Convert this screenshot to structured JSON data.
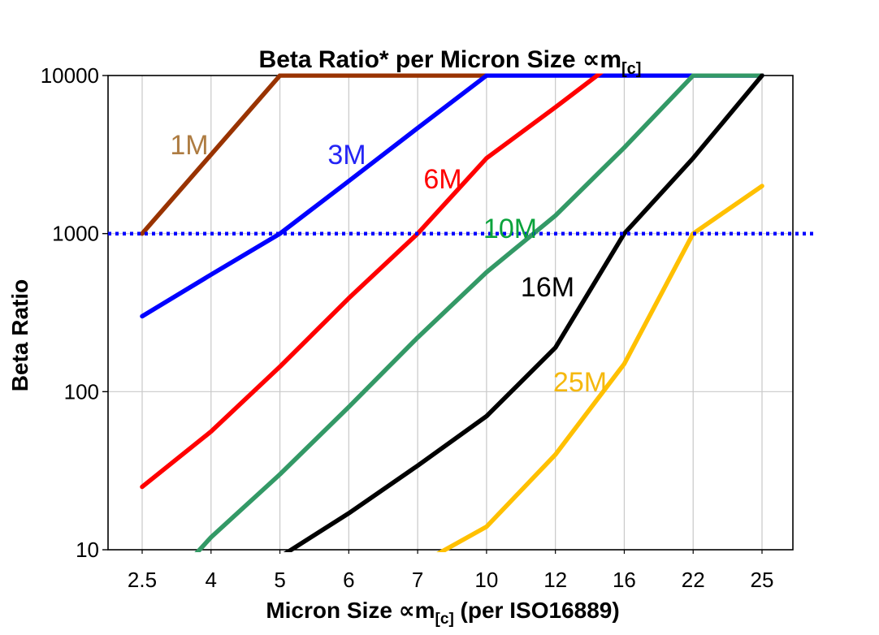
{
  "title": {
    "main": "Beta Ratio* per Micron Size ",
    "prop_symbol": "∝m",
    "subscript": "[c]"
  },
  "axes": {
    "x": {
      "label_prefix": "Micron Size ",
      "prop_symbol": "∝m",
      "subscript": "[c]",
      "label_suffix": " (per ISO16889)",
      "tick_labels": [
        "2.5",
        "4",
        "5",
        "6",
        "7",
        "10",
        "12",
        "16",
        "22",
        "25"
      ]
    },
    "y": {
      "label": "Beta Ratio",
      "tick_labels": [
        "10000",
        "1000",
        "100",
        "10"
      ],
      "tick_values": [
        10000,
        1000,
        100,
        10
      ],
      "scale": "log",
      "min": 10,
      "max": 10000
    }
  },
  "reference_line": {
    "value": 1000,
    "style": "dotted",
    "color": "#0000ff"
  },
  "chart_data": {
    "type": "line",
    "title": "Beta Ratio* per Micron Size ∝m[c]",
    "xlabel": "Micron Size ∝m[c] (per ISO16889)",
    "ylabel": "Beta Ratio",
    "x_categories": [
      2.5,
      4,
      5,
      6,
      7,
      10,
      12,
      16,
      22,
      25
    ],
    "y_scale": "log",
    "ylim": [
      10,
      10000
    ],
    "grid": "on",
    "legend": "inline-labels",
    "gridline_values_y": [
      100,
      1000
    ],
    "series": [
      {
        "name": "1M",
        "color": "#993300",
        "label_color": "#ae7c42",
        "values": [
          1000,
          3160,
          10000,
          10000,
          10000,
          10000,
          null,
          null,
          null,
          null
        ]
      },
      {
        "name": "3M",
        "color": "#0000ff",
        "label_color": "#2424f5",
        "values": [
          300,
          550,
          1000,
          2150,
          4650,
          10000,
          10000,
          10000,
          10000,
          10000
        ]
      },
      {
        "name": "6M",
        "color": "#ff0000",
        "label_color": "#ff0000",
        "values": [
          25,
          56,
          144,
          390,
          1000,
          3000,
          6300,
          13500,
          null,
          null
        ]
      },
      {
        "name": "10M",
        "color": "#339966",
        "label_color": "#0aa33c",
        "values": [
          4,
          12,
          30,
          80,
          220,
          570,
          1300,
          3500,
          10000,
          10000
        ]
      },
      {
        "name": "16M",
        "color": "#000000",
        "label_color": "#000000",
        "values": [
          null,
          null,
          9,
          17,
          34,
          70,
          190,
          1000,
          3000,
          10000
        ]
      },
      {
        "name": "25M",
        "color": "#ffc000",
        "label_color": "#f5b80e",
        "values": [
          null,
          null,
          null,
          null,
          8,
          14,
          40,
          150,
          1000,
          2000
        ]
      }
    ]
  }
}
